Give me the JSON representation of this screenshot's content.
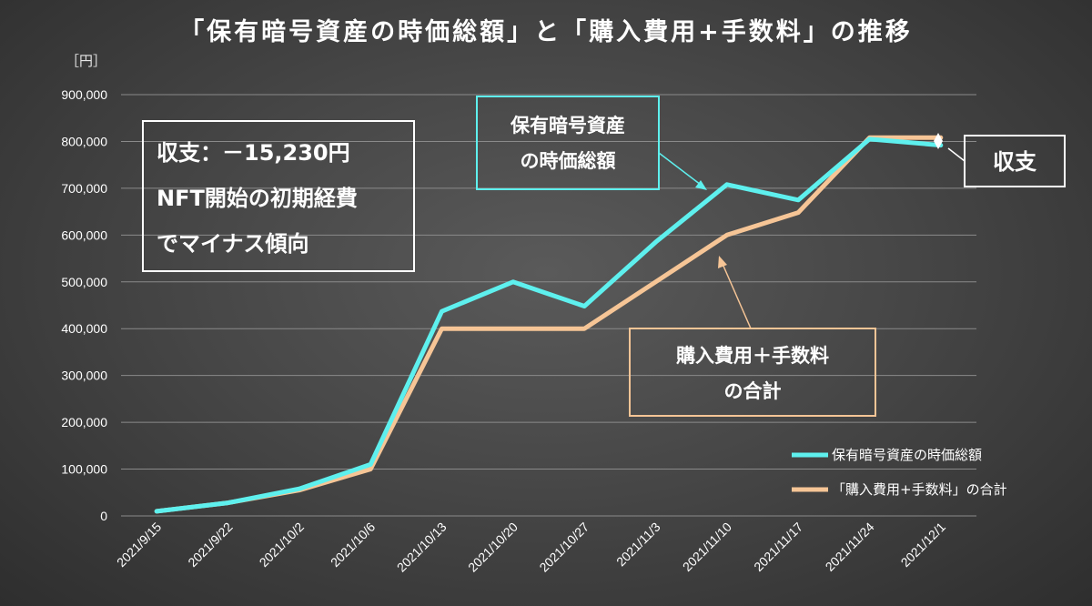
{
  "chart_data": {
    "type": "line",
    "title": "「保有暗号資産の時価総額」と「購入費用+手数料」の推移",
    "unit_label": "［円］",
    "x": [
      "2021/9/15",
      "2021/9/22",
      "2021/10/2",
      "2021/10/6",
      "2021/10/13",
      "2021/10/20",
      "2021/10/27",
      "2021/11/3",
      "2021/11/10",
      "2021/11/17",
      "2021/11/24",
      "2021/12/1"
    ],
    "ylim": [
      0,
      900000
    ],
    "yticks": [
      0,
      100000,
      200000,
      300000,
      400000,
      500000,
      600000,
      700000,
      800000,
      900000
    ],
    "ytick_labels": [
      "0",
      "100,000",
      "200,000",
      "300,000",
      "400,000",
      "500,000",
      "600,000",
      "700,000",
      "800,000",
      "900,000"
    ],
    "grid": true,
    "legend_position": "bottom-right",
    "series": [
      {
        "name": "保有暗号資産の時価総額",
        "color": "#5ef0ee",
        "values": [
          10000,
          28000,
          58000,
          110000,
          437000,
          500000,
          448000,
          585000,
          708000,
          675000,
          805000,
          792000
        ]
      },
      {
        "name": "「購入費用+手数料」の合計",
        "color": "#f6c596",
        "values": [
          10000,
          28000,
          55000,
          100000,
          400000,
          400000,
          400000,
          500000,
          600000,
          648000,
          808000,
          808000
        ]
      }
    ],
    "annotations": {
      "summary_box": {
        "lines": [
          "収支：－15,230円",
          "NFT開始の初期経費",
          "でマイナス傾向"
        ]
      },
      "market_callout": {
        "lines": [
          "保有暗号資産",
          "の時価総額"
        ],
        "color": "#5ef0ee"
      },
      "cost_callout": {
        "lines": [
          "購入費用＋手数料",
          "の合計"
        ],
        "color": "#f6c596"
      },
      "balance_callout": {
        "text": "収支"
      }
    }
  }
}
